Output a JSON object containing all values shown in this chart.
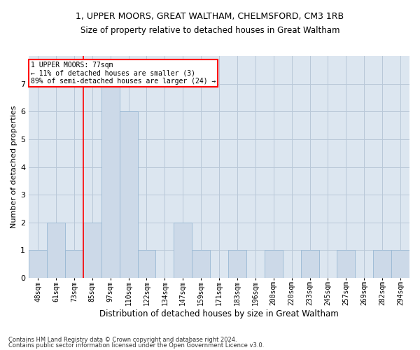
{
  "title": "1, UPPER MOORS, GREAT WALTHAM, CHELMSFORD, CM3 1RB",
  "subtitle": "Size of property relative to detached houses in Great Waltham",
  "xlabel": "Distribution of detached houses by size in Great Waltham",
  "ylabel": "Number of detached properties",
  "bins": [
    "48sqm",
    "61sqm",
    "73sqm",
    "85sqm",
    "97sqm",
    "110sqm",
    "122sqm",
    "134sqm",
    "147sqm",
    "159sqm",
    "171sqm",
    "183sqm",
    "196sqm",
    "208sqm",
    "220sqm",
    "233sqm",
    "245sqm",
    "257sqm",
    "269sqm",
    "282sqm",
    "294sqm"
  ],
  "values": [
    1,
    2,
    1,
    2,
    7,
    6,
    1,
    0,
    2,
    1,
    0,
    1,
    0,
    1,
    0,
    1,
    0,
    1,
    0,
    1,
    1
  ],
  "bar_color": "#ccd9e8",
  "bar_edge_color": "#99b8d4",
  "grid_color": "#b8c8d8",
  "background_color": "#dce6f0",
  "annotation_text": "1 UPPER MOORS: 77sqm\n← 11% of detached houses are smaller (3)\n89% of semi-detached houses are larger (24) →",
  "annotation_box_color": "white",
  "annotation_box_edge_color": "red",
  "red_line_x": 2.5,
  "ylim": [
    0,
    8
  ],
  "yticks": [
    0,
    1,
    2,
    3,
    4,
    5,
    6,
    7,
    8
  ],
  "title_fontsize": 9,
  "subtitle_fontsize": 8.5,
  "xlabel_fontsize": 8.5,
  "ylabel_fontsize": 8,
  "tick_fontsize": 7,
  "footer1": "Contains HM Land Registry data © Crown copyright and database right 2024.",
  "footer2": "Contains public sector information licensed under the Open Government Licence v3.0.",
  "footer_fontsize": 6
}
